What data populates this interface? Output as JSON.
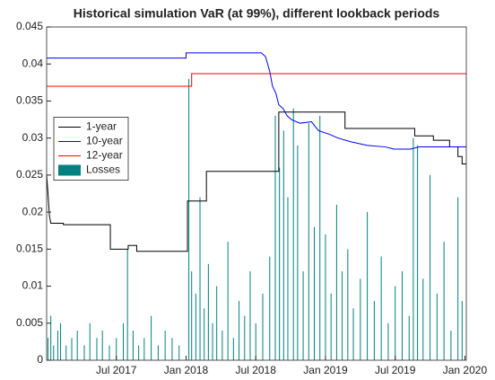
{
  "chart_data": {
    "type": "line",
    "title": "Historical simulation VaR (at 99%), different lookback periods",
    "xlim": [
      2017.0,
      2020.01
    ],
    "xticks": [
      {
        "value": 2017.5,
        "label": "Jul 2017"
      },
      {
        "value": 2018.0,
        "label": "Jan 2018"
      },
      {
        "value": 2018.5,
        "label": "Jul 2018"
      },
      {
        "value": 2019.0,
        "label": "Jan 2019"
      },
      {
        "value": 2019.5,
        "label": "Jul 2019"
      },
      {
        "value": 2020.0,
        "label": "Jan 2020"
      }
    ],
    "ylim": [
      0,
      0.045
    ],
    "yticks": [
      0,
      0.005,
      0.01,
      0.015,
      0.02,
      0.025,
      0.03,
      0.035,
      0.04,
      0.045
    ],
    "grid": false,
    "legend": "center-left",
    "series": [
      {
        "name": "1-year",
        "color": "#000000",
        "x": [
          2017.0,
          2017.01,
          2017.02,
          2017.03,
          2017.12,
          2017.12,
          2017.457,
          2017.457,
          2017.585,
          2017.585,
          2017.646,
          2017.646,
          2018.01,
          2018.01,
          2018.146,
          2018.146,
          2018.665,
          2018.665,
          2019.14,
          2019.14,
          2019.64,
          2019.64,
          2019.774,
          2019.774,
          2019.89,
          2019.89,
          2019.95,
          2019.95,
          2019.98,
          2019.98,
          2020.01
        ],
        "values": [
          0.025,
          0.0225,
          0.0195,
          0.0185,
          0.0185,
          0.0183,
          0.0183,
          0.015,
          0.015,
          0.0155,
          0.0155,
          0.0147,
          0.0147,
          0.0215,
          0.0215,
          0.0255,
          0.0255,
          0.0335,
          0.0335,
          0.0313,
          0.0313,
          0.0303,
          0.0303,
          0.0297,
          0.0297,
          0.0288,
          0.0288,
          0.0275,
          0.0275,
          0.0265,
          0.0265
        ]
      },
      {
        "name": "10-year",
        "color": "#0000ff",
        "x": [
          2017.0,
          2018.0,
          2018.0,
          2018.54,
          2018.57,
          2018.6,
          2018.62,
          2018.645,
          2018.665,
          2018.695,
          2018.725,
          2018.755,
          2018.817,
          2018.9,
          2018.95,
          2019.03,
          2019.09,
          2019.18,
          2019.3,
          2019.43,
          2019.49,
          2019.61,
          2019.67,
          2020.01
        ],
        "values": [
          0.0408,
          0.0408,
          0.0415,
          0.0415,
          0.041,
          0.039,
          0.037,
          0.036,
          0.0345,
          0.034,
          0.033,
          0.0325,
          0.032,
          0.0322,
          0.031,
          0.0305,
          0.03,
          0.0295,
          0.029,
          0.0288,
          0.0285,
          0.0285,
          0.0288,
          0.0288
        ]
      },
      {
        "name": "12-year",
        "color": "#ff0000",
        "x": [
          2017.0,
          2018.04,
          2018.04,
          2020.01
        ],
        "values": [
          0.037,
          0.037,
          0.0387,
          0.0387
        ]
      }
    ],
    "bars": {
      "name": "Losses",
      "color": "#008080",
      "x": [
        2017.01,
        2017.03,
        2017.05,
        2017.08,
        2017.1,
        2017.14,
        2017.18,
        2017.22,
        2017.27,
        2017.31,
        2017.36,
        2017.4,
        2017.45,
        2017.5,
        2017.55,
        2017.58,
        2017.62,
        2017.66,
        2017.7,
        2017.75,
        2017.8,
        2017.85,
        2017.9,
        2017.95,
        2018.02,
        2018.04,
        2018.07,
        2018.1,
        2018.13,
        2018.16,
        2018.19,
        2018.22,
        2018.26,
        2018.3,
        2018.34,
        2018.38,
        2018.42,
        2018.46,
        2018.5,
        2018.55,
        2018.6,
        2018.64,
        2018.67,
        2018.7,
        2018.73,
        2018.77,
        2018.8,
        2018.84,
        2018.88,
        2018.92,
        2018.96,
        2019.0,
        2019.04,
        2019.08,
        2019.12,
        2019.16,
        2019.2,
        2019.25,
        2019.3,
        2019.35,
        2019.4,
        2019.45,
        2019.5,
        2019.55,
        2019.6,
        2019.63,
        2019.66,
        2019.7,
        2019.75,
        2019.8,
        2019.85,
        2019.9,
        2019.95,
        2019.98
      ],
      "values": [
        0.003,
        0.006,
        0.002,
        0.004,
        0.005,
        0.002,
        0.003,
        0.004,
        0.002,
        0.005,
        0.003,
        0.004,
        0.002,
        0.003,
        0.005,
        0.015,
        0.004,
        0.002,
        0.003,
        0.006,
        0.002,
        0.004,
        0.003,
        0.002,
        0.038,
        0.012,
        0.009,
        0.022,
        0.007,
        0.013,
        0.005,
        0.01,
        0.004,
        0.016,
        0.003,
        0.008,
        0.006,
        0.012,
        0.005,
        0.009,
        0.014,
        0.033,
        0.026,
        0.031,
        0.022,
        0.034,
        0.029,
        0.012,
        0.032,
        0.018,
        0.033,
        0.017,
        0.009,
        0.021,
        0.012,
        0.015,
        0.007,
        0.011,
        0.02,
        0.008,
        0.014,
        0.005,
        0.01,
        0.012,
        0.006,
        0.03,
        0.029,
        0.011,
        0.025,
        0.009,
        0.016,
        0.004,
        0.022,
        0.008
      ]
    }
  }
}
